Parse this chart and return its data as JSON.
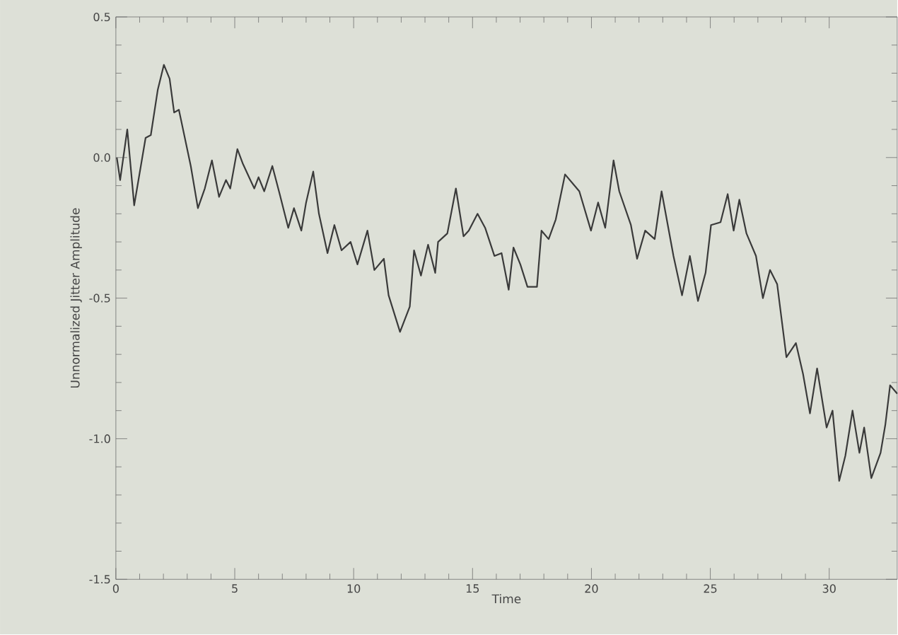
{
  "chart_data": {
    "type": "line",
    "xlabel": "Time",
    "ylabel": "Unnormalized Jitter Amplitude",
    "xlim": [
      0,
      32.86
    ],
    "ylim": [
      -1.5,
      0.5
    ],
    "xticks": [
      0,
      5,
      10,
      15,
      20,
      25,
      30
    ],
    "yticks": [
      {
        "value": -1.5,
        "label": "-1.5"
      },
      {
        "value": -1.0,
        "label": "-1.0"
      },
      {
        "value": -0.5,
        "label": "-0.5"
      },
      {
        "value": 0.0,
        "label": "0.0"
      },
      {
        "value": 0.5,
        "label": "0.5"
      }
    ],
    "grid": false,
    "legend": false,
    "marker": "none",
    "line_style": "solid",
    "series": [
      {
        "color": "#3a3a3a",
        "x": [
          0.04,
          0.18,
          0.48,
          0.77,
          1.25,
          1.47,
          1.76,
          2.02,
          2.26,
          2.45,
          2.65,
          3.15,
          3.45,
          3.74,
          4.04,
          4.34,
          4.63,
          4.81,
          5.11,
          5.33,
          5.82,
          6.0,
          6.24,
          6.58,
          6.89,
          7.25,
          7.49,
          7.8,
          8.0,
          8.3,
          8.54,
          8.9,
          9.19,
          9.49,
          9.87,
          10.16,
          10.58,
          10.87,
          11.27,
          11.47,
          11.95,
          12.36,
          12.54,
          12.83,
          13.13,
          13.43,
          13.55,
          13.94,
          14.3,
          14.62,
          14.84,
          15.21,
          15.53,
          15.92,
          16.22,
          16.52,
          16.72,
          17.01,
          17.31,
          17.71,
          17.9,
          18.2,
          18.5,
          18.89,
          19.49,
          19.98,
          20.28,
          20.58,
          20.93,
          21.17,
          21.66,
          21.92,
          22.26,
          22.66,
          22.95,
          23.45,
          23.81,
          24.14,
          24.48,
          24.8,
          25.03,
          25.43,
          25.73,
          25.98,
          26.22,
          26.52,
          26.92,
          27.21,
          27.51,
          27.81,
          28.2,
          28.6,
          28.9,
          29.19,
          29.49,
          29.89,
          30.14,
          30.42,
          30.68,
          30.98,
          31.27,
          31.47,
          31.77,
          32.16,
          32.36,
          32.56,
          32.86
        ],
        "values": [
          0.0,
          -0.08,
          0.1,
          -0.17,
          0.07,
          0.08,
          0.24,
          0.33,
          0.28,
          0.16,
          0.17,
          -0.03,
          -0.18,
          -0.11,
          -0.01,
          -0.14,
          -0.08,
          -0.11,
          0.03,
          -0.02,
          -0.11,
          -0.07,
          -0.12,
          -0.03,
          -0.13,
          -0.25,
          -0.18,
          -0.26,
          -0.16,
          -0.05,
          -0.2,
          -0.34,
          -0.24,
          -0.33,
          -0.3,
          -0.38,
          -0.26,
          -0.4,
          -0.36,
          -0.49,
          -0.62,
          -0.53,
          -0.33,
          -0.42,
          -0.31,
          -0.41,
          -0.3,
          -0.27,
          -0.11,
          -0.28,
          -0.26,
          -0.2,
          -0.25,
          -0.35,
          -0.34,
          -0.47,
          -0.32,
          -0.38,
          -0.46,
          -0.46,
          -0.26,
          -0.29,
          -0.22,
          -0.06,
          -0.12,
          -0.26,
          -0.16,
          -0.25,
          -0.01,
          -0.12,
          -0.24,
          -0.36,
          -0.26,
          -0.29,
          -0.12,
          -0.35,
          -0.49,
          -0.35,
          -0.51,
          -0.41,
          -0.24,
          -0.23,
          -0.13,
          -0.26,
          -0.15,
          -0.27,
          -0.35,
          -0.5,
          -0.4,
          -0.45,
          -0.71,
          -0.66,
          -0.77,
          -0.91,
          -0.75,
          -0.96,
          -0.9,
          -1.15,
          -1.06,
          -0.9,
          -1.05,
          -0.96,
          -1.14,
          -1.05,
          -0.95,
          -0.81,
          -0.84
        ]
      }
    ]
  }
}
